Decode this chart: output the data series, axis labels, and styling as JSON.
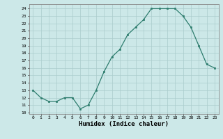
{
  "x": [
    0,
    1,
    2,
    3,
    4,
    5,
    6,
    7,
    8,
    9,
    10,
    11,
    12,
    13,
    14,
    15,
    16,
    17,
    18,
    19,
    20,
    21,
    22,
    23
  ],
  "y": [
    13,
    12,
    11.5,
    11.5,
    12,
    12,
    10.5,
    11,
    13,
    15.5,
    17.5,
    18.5,
    20.5,
    21.5,
    22.5,
    24,
    24,
    24,
    24,
    23,
    21.5,
    19,
    16.5,
    16
  ],
  "xlabel": "Humidex (Indice chaleur)",
  "xlim": [
    -0.5,
    23.5
  ],
  "ylim": [
    9.8,
    24.6
  ],
  "yticks": [
    10,
    11,
    12,
    13,
    14,
    15,
    16,
    17,
    18,
    19,
    20,
    21,
    22,
    23,
    24
  ],
  "xticks": [
    0,
    1,
    2,
    3,
    4,
    5,
    6,
    7,
    8,
    9,
    10,
    11,
    12,
    13,
    14,
    15,
    16,
    17,
    18,
    19,
    20,
    21,
    22,
    23
  ],
  "line_color": "#2e7d6e",
  "marker_color": "#2e7d6e",
  "bg_color": "#cce8e8",
  "grid_color": "#aacccc"
}
